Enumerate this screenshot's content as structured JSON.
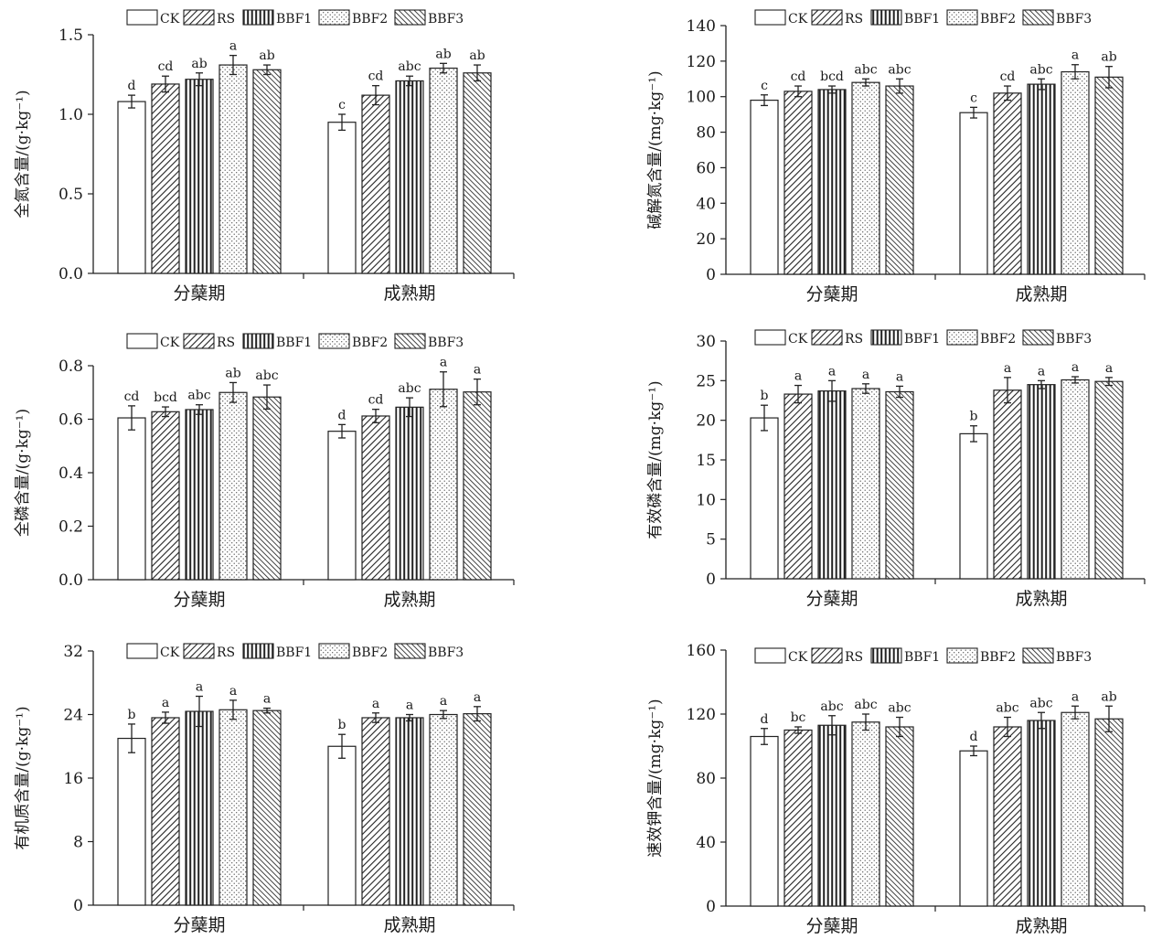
{
  "legend_labels": [
    "CK",
    "RS",
    "BBF1",
    "BBF2",
    "BBF3"
  ],
  "chart_data": [
    {
      "type": "bar",
      "ylabel": "全氮含量/(g·kg⁻¹)",
      "ylim": [
        0,
        1.5
      ],
      "yticks": [
        "0.0",
        "0.5",
        "1.0",
        "1.5"
      ],
      "categories": [
        "分蘖期",
        "成熟期"
      ],
      "legend_position": "top",
      "series": [
        {
          "name": "CK",
          "values": [
            1.08,
            0.95
          ],
          "errors": [
            0.04,
            0.05
          ],
          "letters": [
            "d",
            "c"
          ]
        },
        {
          "name": "RS",
          "values": [
            1.19,
            1.12
          ],
          "errors": [
            0.05,
            0.06
          ],
          "letters": [
            "cd",
            "cd"
          ]
        },
        {
          "name": "BBF1",
          "values": [
            1.22,
            1.21
          ],
          "errors": [
            0.04,
            0.03
          ],
          "letters": [
            "ab",
            "abc"
          ]
        },
        {
          "name": "BBF2",
          "values": [
            1.31,
            1.29
          ],
          "errors": [
            0.06,
            0.03
          ],
          "letters": [
            "a",
            "ab"
          ]
        },
        {
          "name": "BBF3",
          "values": [
            1.28,
            1.26
          ],
          "errors": [
            0.03,
            0.05
          ],
          "letters": [
            "ab",
            "ab"
          ]
        }
      ]
    },
    {
      "type": "bar",
      "ylabel": "碱解氮含量/(mg·kg⁻¹)",
      "ylim": [
        0,
        140
      ],
      "yticks": [
        "0",
        "20",
        "40",
        "60",
        "80",
        "100",
        "120",
        "140"
      ],
      "categories": [
        "分蘖期",
        "成熟期"
      ],
      "legend_position": "top",
      "series": [
        {
          "name": "CK",
          "values": [
            98,
            91
          ],
          "errors": [
            3,
            3
          ],
          "letters": [
            "c",
            "c"
          ]
        },
        {
          "name": "RS",
          "values": [
            103,
            102
          ],
          "errors": [
            3,
            4
          ],
          "letters": [
            "cd",
            "cd"
          ]
        },
        {
          "name": "BBF1",
          "values": [
            104,
            107
          ],
          "errors": [
            2,
            3
          ],
          "letters": [
            "bcd",
            "abc"
          ]
        },
        {
          "name": "BBF2",
          "values": [
            108,
            114
          ],
          "errors": [
            2,
            4
          ],
          "letters": [
            "abc",
            "a"
          ]
        },
        {
          "name": "BBF3",
          "values": [
            106,
            111
          ],
          "errors": [
            4,
            6
          ],
          "letters": [
            "abc",
            "ab"
          ]
        }
      ]
    },
    {
      "type": "bar",
      "ylabel": "全磷含量/(g·kg⁻¹)",
      "ylim": [
        0,
        0.8
      ],
      "yticks": [
        "0.0",
        "0.2",
        "0.4",
        "0.6",
        "0.8"
      ],
      "categories": [
        "分蘖期",
        "成熟期"
      ],
      "legend_position": "top",
      "series": [
        {
          "name": "CK",
          "values": [
            0.605,
            0.555
          ],
          "errors": [
            0.045,
            0.025
          ],
          "letters": [
            "cd",
            "d"
          ]
        },
        {
          "name": "RS",
          "values": [
            0.628,
            0.612
          ],
          "errors": [
            0.018,
            0.025
          ],
          "letters": [
            "bcd",
            "cd"
          ]
        },
        {
          "name": "BBF1",
          "values": [
            0.636,
            0.645
          ],
          "errors": [
            0.018,
            0.035
          ],
          "letters": [
            "abc",
            "abc"
          ]
        },
        {
          "name": "BBF2",
          "values": [
            0.7,
            0.712
          ],
          "errors": [
            0.037,
            0.065
          ],
          "letters": [
            "ab",
            "a"
          ]
        },
        {
          "name": "BBF3",
          "values": [
            0.683,
            0.702
          ],
          "errors": [
            0.045,
            0.048
          ],
          "letters": [
            "abc",
            "a"
          ]
        }
      ]
    },
    {
      "type": "bar",
      "ylabel": "有效磷含量/(mg·kg⁻¹)",
      "ylim": [
        0,
        30
      ],
      "yticks": [
        "0",
        "5",
        "10",
        "15",
        "20",
        "25",
        "30"
      ],
      "categories": [
        "分蘖期",
        "成熟期"
      ],
      "legend_position": "top",
      "series": [
        {
          "name": "CK",
          "values": [
            20.3,
            18.3
          ],
          "errors": [
            1.6,
            1.0
          ],
          "letters": [
            "b",
            "b"
          ]
        },
        {
          "name": "RS",
          "values": [
            23.3,
            23.8
          ],
          "errors": [
            1.1,
            1.6
          ],
          "letters": [
            "a",
            "a"
          ]
        },
        {
          "name": "BBF1",
          "values": [
            23.7,
            24.5
          ],
          "errors": [
            1.3,
            0.5
          ],
          "letters": [
            "a",
            "a"
          ]
        },
        {
          "name": "BBF2",
          "values": [
            24.0,
            25.1
          ],
          "errors": [
            0.6,
            0.4
          ],
          "letters": [
            "a",
            "a"
          ]
        },
        {
          "name": "BBF3",
          "values": [
            23.6,
            24.9
          ],
          "errors": [
            0.7,
            0.5
          ],
          "letters": [
            "a",
            "a"
          ]
        }
      ]
    },
    {
      "type": "bar",
      "ylabel": "有机质含量/(g·kg⁻¹)",
      "ylim": [
        0,
        32
      ],
      "yticks": [
        "0",
        "8",
        "16",
        "24",
        "32"
      ],
      "categories": [
        "分蘖期",
        "成熟期"
      ],
      "legend_position": "top",
      "series": [
        {
          "name": "CK",
          "values": [
            21.0,
            20.0
          ],
          "errors": [
            1.8,
            1.5
          ],
          "letters": [
            "b",
            "b"
          ]
        },
        {
          "name": "RS",
          "values": [
            23.6,
            23.6
          ],
          "errors": [
            0.7,
            0.6
          ],
          "letters": [
            "a",
            "a"
          ]
        },
        {
          "name": "BBF1",
          "values": [
            24.4,
            23.6
          ],
          "errors": [
            1.9,
            0.4
          ],
          "letters": [
            "a",
            "a"
          ]
        },
        {
          "name": "BBF2",
          "values": [
            24.6,
            24.0
          ],
          "errors": [
            1.2,
            0.5
          ],
          "letters": [
            "a",
            "a"
          ]
        },
        {
          "name": "BBF3",
          "values": [
            24.5,
            24.1
          ],
          "errors": [
            0.3,
            0.9
          ],
          "letters": [
            "a",
            "a"
          ]
        }
      ]
    },
    {
      "type": "bar",
      "ylabel": "速效钾含量/(mg·kg⁻¹)",
      "ylim": [
        0,
        160
      ],
      "yticks": [
        "0",
        "40",
        "80",
        "120",
        "160"
      ],
      "categories": [
        "分蘖期",
        "成熟期"
      ],
      "legend_position": "top",
      "series": [
        {
          "name": "CK",
          "values": [
            106,
            97
          ],
          "errors": [
            5,
            3
          ],
          "letters": [
            "d",
            "d"
          ]
        },
        {
          "name": "RS",
          "values": [
            110,
            112
          ],
          "errors": [
            2,
            6
          ],
          "letters": [
            "bc",
            "abc"
          ]
        },
        {
          "name": "BBF1",
          "values": [
            113,
            116
          ],
          "errors": [
            6,
            5
          ],
          "letters": [
            "abc",
            "abc"
          ]
        },
        {
          "name": "BBF2",
          "values": [
            115,
            121
          ],
          "errors": [
            5,
            4
          ],
          "letters": [
            "abc",
            "a"
          ]
        },
        {
          "name": "BBF3",
          "values": [
            112,
            117
          ],
          "errors": [
            6,
            8
          ],
          "letters": [
            "abc",
            "ab"
          ]
        }
      ]
    }
  ]
}
